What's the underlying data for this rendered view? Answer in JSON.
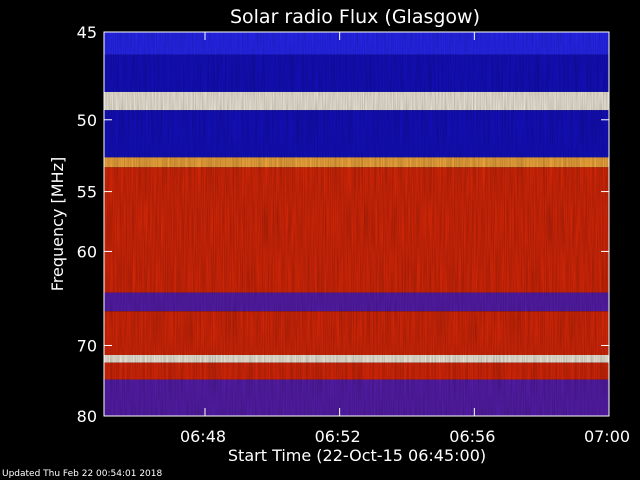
{
  "chart_data": {
    "type": "heatmap",
    "title": "Solar radio Flux (Glasgow)",
    "xlabel": "Start Time (22-Oct-15 06:45:00)",
    "ylabel": "Frequency [MHz]",
    "x_start": "06:45:00",
    "x_end": "07:00:00",
    "x_ticks": [
      "06:48",
      "06:52",
      "06:56",
      "07:00"
    ],
    "y_ticks": [
      45,
      50,
      55,
      60,
      70,
      80
    ],
    "ylim": [
      45,
      80
    ],
    "y_scale": "reciprocal",
    "colormap": "blue-red-yellow-white",
    "bands": [
      {
        "from": 45.0,
        "to": 46.2,
        "level": "blue"
      },
      {
        "from": 46.2,
        "to": 48.3,
        "level": "deep-blue"
      },
      {
        "from": 48.3,
        "to": 49.4,
        "level": "white"
      },
      {
        "from": 49.4,
        "to": 52.5,
        "level": "deep-blue"
      },
      {
        "from": 52.5,
        "to": 53.2,
        "level": "yellow"
      },
      {
        "from": 53.2,
        "to": 64.0,
        "level": "red"
      },
      {
        "from": 64.0,
        "to": 66.0,
        "level": "purple"
      },
      {
        "from": 66.0,
        "to": 71.2,
        "level": "red"
      },
      {
        "from": 71.2,
        "to": 72.2,
        "level": "white"
      },
      {
        "from": 72.2,
        "to": 74.5,
        "level": "red"
      },
      {
        "from": 74.5,
        "to": 80.0,
        "level": "purple"
      }
    ]
  },
  "footer": {
    "updated": "Updated Thu Feb 22 00:54:01 2018"
  },
  "colors": {
    "background": "#000000",
    "axis": "#ffffff"
  }
}
